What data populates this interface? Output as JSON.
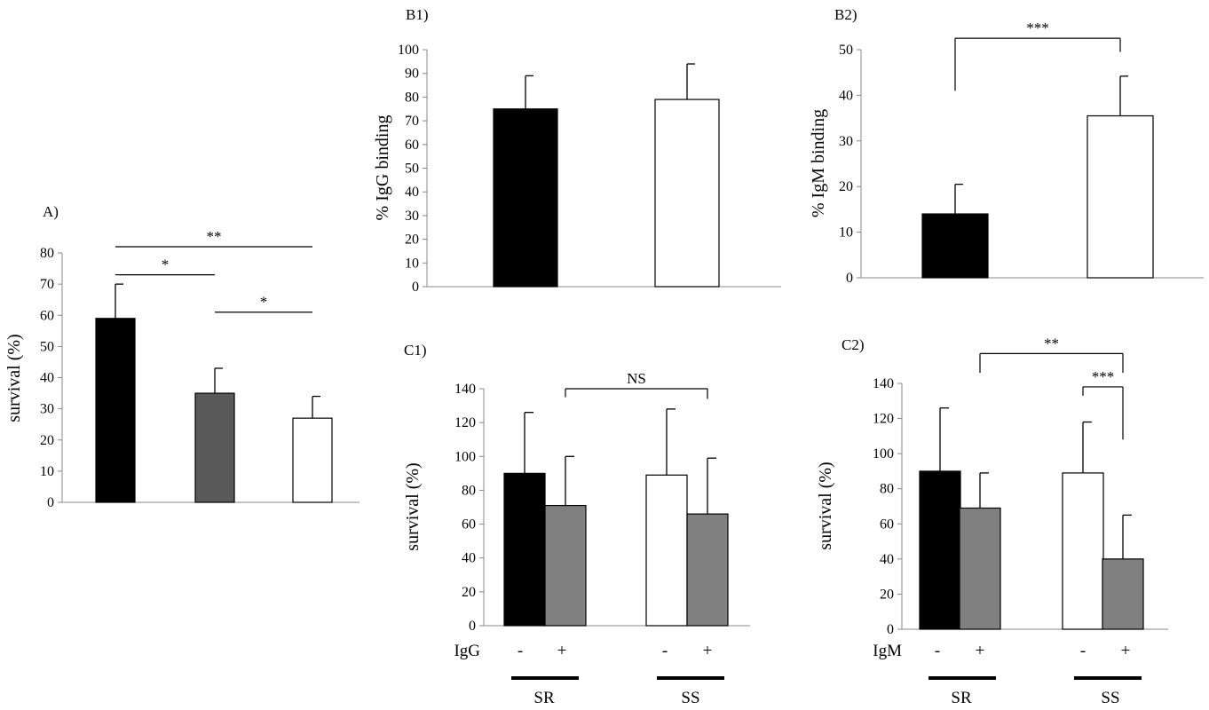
{
  "chart_data": [
    {
      "id": "A",
      "panel_label": "A)",
      "type": "bar",
      "ylabel": "survival (%)",
      "ylim": [
        0,
        80
      ],
      "yticks": [
        "0",
        "10",
        "20",
        "30",
        "40",
        "50",
        "60",
        "70",
        "80"
      ],
      "bars": [
        {
          "value": 59,
          "error": 11,
          "color": "#000000"
        },
        {
          "value": 35,
          "error": 8,
          "color": "#595959"
        },
        {
          "value": 27,
          "error": 7,
          "color": "#ffffff"
        }
      ],
      "significance": [
        {
          "from": 0,
          "to": 1,
          "label": "*",
          "style": "line",
          "level": 73
        },
        {
          "from": 0,
          "to": 2,
          "label": "**",
          "style": "line",
          "level": 82
        },
        {
          "from": 1,
          "to": 2,
          "label": "*",
          "style": "line",
          "level": 61
        }
      ]
    },
    {
      "id": "B1",
      "panel_label": "B1)",
      "type": "bar",
      "ylabel": "% IgG  binding",
      "ylim": [
        0,
        100
      ],
      "yticks": [
        "0",
        "10",
        "20",
        "30",
        "40",
        "50",
        "60",
        "70",
        "80",
        "90",
        "100"
      ],
      "bars": [
        {
          "value": 75,
          "error": 14,
          "color": "#000000"
        },
        {
          "value": 79,
          "error": 15,
          "color": "#ffffff"
        }
      ],
      "significance": []
    },
    {
      "id": "B2",
      "panel_label": "B2)",
      "type": "bar",
      "ylabel": "% IgM  binding",
      "ylim": [
        0,
        50
      ],
      "yticks": [
        "0",
        "10",
        "20",
        "30",
        "40",
        "50"
      ],
      "bars": [
        {
          "value": 14,
          "error": 6.5,
          "color": "#000000"
        },
        {
          "value": 35.5,
          "error": 8.7,
          "color": "#ffffff"
        }
      ],
      "significance": [
        {
          "from": 0,
          "to": 1,
          "label": "***",
          "style": "bracket",
          "level": 52.5,
          "drop_left": 41,
          "drop_right": 49.5
        }
      ]
    },
    {
      "id": "C1",
      "panel_label": "C1)",
      "type": "bar",
      "ylabel": "survival (%)",
      "ylim": [
        0,
        140
      ],
      "yticks": [
        "0",
        "20",
        "40",
        "60",
        "80",
        "100",
        "120",
        "140"
      ],
      "treatment_label": "IgG",
      "signs": [
        "-",
        "+",
        "-",
        "+"
      ],
      "groups": [
        "SR",
        "SS"
      ],
      "bars": [
        {
          "value": 90,
          "error": 36,
          "color": "#000000"
        },
        {
          "value": 71,
          "error": 29,
          "color": "#808080"
        },
        {
          "value": 89,
          "error": 39,
          "color": "#ffffff"
        },
        {
          "value": 66,
          "error": 33,
          "color": "#808080"
        }
      ],
      "significance": [
        {
          "from": 1,
          "to": 3,
          "label": "NS",
          "style": "bracket",
          "level": 140,
          "drop_left": 135,
          "drop_right": 134
        }
      ]
    },
    {
      "id": "C2",
      "panel_label": "C2)",
      "type": "bar",
      "ylabel": "survival (%)",
      "ylim": [
        0,
        140
      ],
      "yticks": [
        "0",
        "20",
        "40",
        "60",
        "80",
        "100",
        "120",
        "140"
      ],
      "treatment_label": "IgM",
      "signs": [
        "-",
        "+",
        "-",
        "+"
      ],
      "groups": [
        "SR",
        "SS"
      ],
      "bars": [
        {
          "value": 90,
          "error": 36,
          "color": "#000000"
        },
        {
          "value": 69,
          "error": 20,
          "color": "#808080"
        },
        {
          "value": 89,
          "error": 29,
          "color": "#ffffff"
        },
        {
          "value": 40,
          "error": 25,
          "color": "#808080"
        }
      ],
      "significance": [
        {
          "from": 1,
          "to": 3,
          "label": "**",
          "style": "bracket",
          "level": 157,
          "drop_left": 146,
          "drop_right": 146
        },
        {
          "from": 2,
          "to": 3,
          "label": "***",
          "style": "bracket",
          "level": 138,
          "drop_left": 133,
          "drop_right": 108
        }
      ]
    }
  ]
}
